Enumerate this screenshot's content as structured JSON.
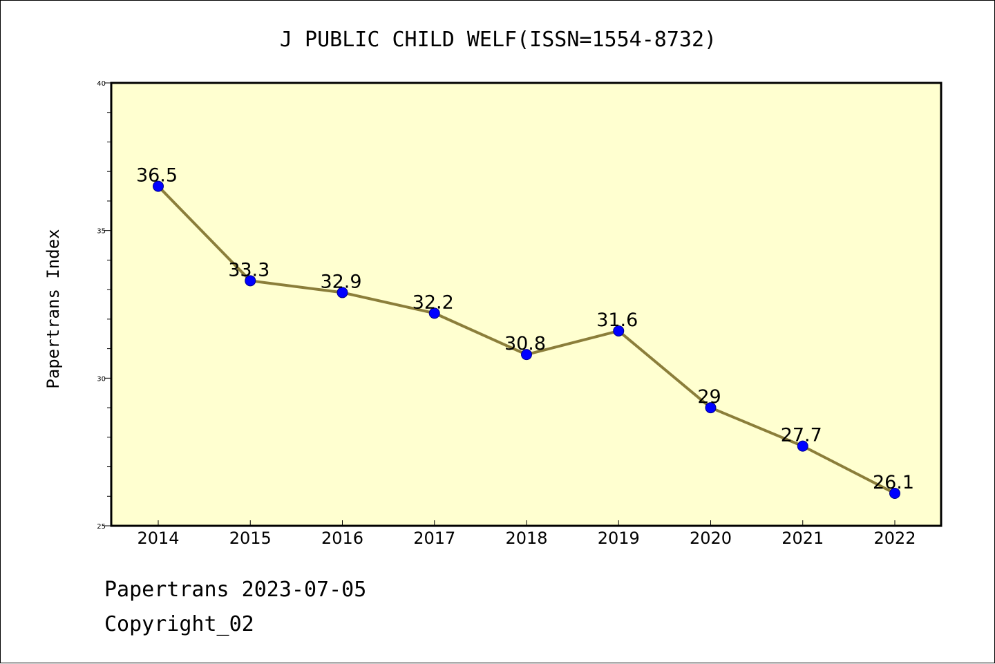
{
  "chart_data": {
    "type": "line",
    "title": "J PUBLIC CHILD WELF(ISSN=1554-8732)",
    "xlabel": "",
    "ylabel": "Papertrans Index",
    "categories": [
      "2014",
      "2015",
      "2016",
      "2017",
      "2018",
      "2019",
      "2020",
      "2021",
      "2022"
    ],
    "values": [
      36.5,
      33.3,
      32.9,
      32.2,
      30.8,
      31.6,
      29,
      27.7,
      26.1
    ],
    "data_labels": [
      "36.5",
      "33.3",
      "32.9",
      "32.2",
      "30.8",
      "31.6",
      "29",
      "27.7",
      "26.1"
    ],
    "ylim": [
      25,
      40
    ],
    "yticks": [
      25,
      30,
      35,
      40
    ],
    "grid": false,
    "legend": "none",
    "colors": {
      "background": "#ffffd0",
      "line": "#8b7e3a",
      "marker": "#0000ff",
      "marker_edge": "#00008b"
    }
  },
  "footer": {
    "line1": "Papertrans 2023-07-05",
    "line2": "Copyright_02"
  }
}
